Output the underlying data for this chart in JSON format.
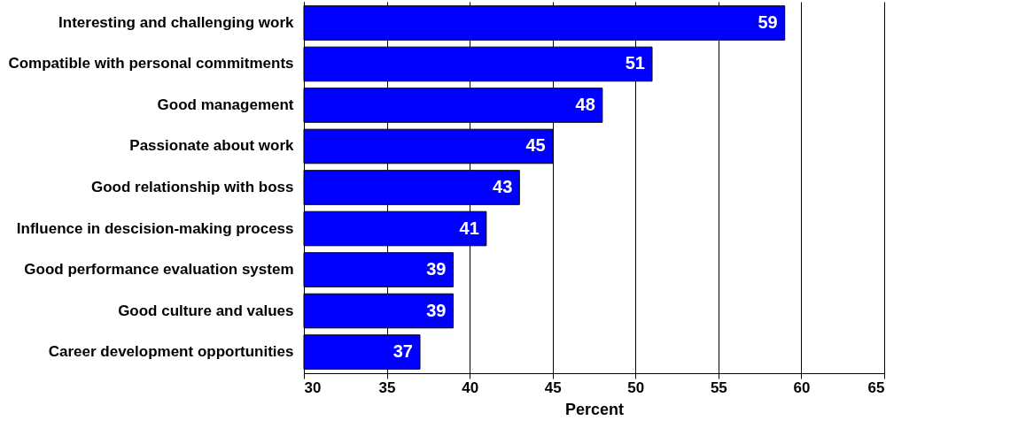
{
  "chart_data": {
    "type": "bar",
    "orientation": "horizontal",
    "xlabel": "Percent",
    "categories": [
      "Interesting and challenging work",
      "Compatible with personal commitments",
      "Good management",
      "Passionate about work",
      "Good relationship with boss",
      "Influence in descision-making process",
      "Good performance evaluation system",
      "Good culture and values",
      "Career development opportunities"
    ],
    "values": [
      59,
      51,
      48,
      45,
      43,
      41,
      39,
      39,
      37
    ],
    "color": "#0000ff",
    "xlim": [
      30,
      65
    ],
    "xticks": [
      30,
      35,
      40,
      45,
      50,
      55,
      60,
      65
    ],
    "grid": "x",
    "data_labels": true
  }
}
